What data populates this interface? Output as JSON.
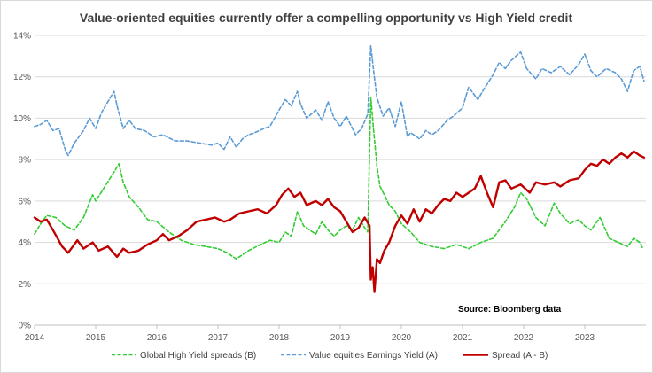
{
  "chart_data": {
    "type": "line",
    "title": "Value-oriented equities currently offer a compelling opportunity vs High Yield credit",
    "xlabel": "",
    "ylabel": "",
    "xlim": [
      2014,
      2024
    ],
    "ylim": [
      0,
      14
    ],
    "x_ticks": [
      2014,
      2015,
      2016,
      2017,
      2018,
      2019,
      2020,
      2021,
      2022,
      2023
    ],
    "x_tick_labels": [
      "2014",
      "2015",
      "2016",
      "2017",
      "2018",
      "2019",
      "2020",
      "2021",
      "2022",
      "2023"
    ],
    "y_ticks": [
      0,
      2,
      4,
      6,
      8,
      10,
      12,
      14
    ],
    "y_tick_labels": [
      "0%",
      "2%",
      "4%",
      "6%",
      "8%",
      "10%",
      "12%",
      "14%"
    ],
    "grid": "horizontal",
    "legend_position": "bottom",
    "annotation": "Source: Bloomberg data",
    "series": [
      {
        "name": "Global High Yield spreads (B)",
        "color": "#33cc33",
        "style": "dashed",
        "x": [
          2014.0,
          2014.1,
          2014.2,
          2014.35,
          2014.5,
          2014.65,
          2014.8,
          2014.95,
          2015.0,
          2015.15,
          2015.3,
          2015.38,
          2015.45,
          2015.55,
          2015.7,
          2015.85,
          2016.0,
          2016.2,
          2016.4,
          2016.6,
          2016.8,
          2017.0,
          2017.15,
          2017.3,
          2017.5,
          2017.7,
          2017.85,
          2018.0,
          2018.1,
          2018.2,
          2018.3,
          2018.4,
          2018.5,
          2018.6,
          2018.7,
          2018.8,
          2018.9,
          2019.0,
          2019.1,
          2019.2,
          2019.3,
          2019.4,
          2019.45,
          2019.5,
          2019.55,
          2019.6,
          2019.65,
          2019.72,
          2019.8,
          2019.9,
          2020.0,
          2020.15,
          2020.3,
          2020.5,
          2020.7,
          2020.9,
          2021.1,
          2021.3,
          2021.5,
          2021.7,
          2021.85,
          2021.95,
          2022.05,
          2022.2,
          2022.35,
          2022.5,
          2022.6,
          2022.75,
          2022.9,
          2023.0,
          2023.1,
          2023.25,
          2023.4,
          2023.55,
          2023.7,
          2023.8,
          2023.9,
          2023.95
        ],
        "values": [
          4.4,
          4.9,
          5.3,
          5.2,
          4.8,
          4.6,
          5.2,
          6.3,
          6.0,
          6.7,
          7.4,
          7.8,
          6.9,
          6.2,
          5.7,
          5.1,
          5.0,
          4.5,
          4.1,
          3.9,
          3.8,
          3.7,
          3.5,
          3.2,
          3.6,
          3.9,
          4.1,
          4.0,
          4.5,
          4.3,
          5.5,
          4.8,
          4.6,
          4.4,
          5.0,
          4.6,
          4.3,
          4.6,
          4.8,
          4.6,
          5.2,
          4.7,
          4.5,
          11.0,
          9.3,
          7.7,
          6.7,
          6.3,
          5.8,
          5.5,
          4.9,
          4.5,
          4.0,
          3.8,
          3.7,
          3.9,
          3.7,
          4.0,
          4.2,
          5.0,
          5.7,
          6.4,
          6.1,
          5.2,
          4.8,
          5.9,
          5.4,
          4.9,
          5.1,
          4.8,
          4.6,
          5.2,
          4.2,
          4.0,
          3.8,
          4.2,
          4.0,
          3.7
        ]
      },
      {
        "name": "Value equities Earnings Yield (A)",
        "color": "#5b9bd5",
        "style": "dashed",
        "x": [
          2014.0,
          2014.1,
          2014.2,
          2014.3,
          2014.4,
          2014.5,
          2014.55,
          2014.65,
          2014.8,
          2014.9,
          2015.0,
          2015.1,
          2015.2,
          2015.3,
          2015.35,
          2015.45,
          2015.55,
          2015.65,
          2015.8,
          2015.95,
          2016.1,
          2016.3,
          2016.5,
          2016.7,
          2016.9,
          2017.0,
          2017.1,
          2017.2,
          2017.3,
          2017.4,
          2017.5,
          2017.6,
          2017.75,
          2017.85,
          2018.0,
          2018.1,
          2018.2,
          2018.3,
          2018.35,
          2018.45,
          2018.6,
          2018.7,
          2018.8,
          2018.9,
          2019.0,
          2019.1,
          2019.25,
          2019.35,
          2019.45,
          2019.5,
          2019.55,
          2019.6,
          2019.7,
          2019.8,
          2019.9,
          2020.0,
          2020.1,
          2020.15,
          2020.3,
          2020.4,
          2020.5,
          2020.6,
          2020.75,
          2020.85,
          2021.0,
          2021.1,
          2021.25,
          2021.35,
          2021.5,
          2021.6,
          2021.7,
          2021.8,
          2021.95,
          2022.05,
          2022.2,
          2022.3,
          2022.45,
          2022.6,
          2022.75,
          2022.9,
          2023.0,
          2023.1,
          2023.2,
          2023.35,
          2023.5,
          2023.6,
          2023.7,
          2023.8,
          2023.9,
          2023.97
        ],
        "values": [
          9.6,
          9.7,
          9.9,
          9.4,
          9.5,
          8.5,
          8.2,
          8.8,
          9.4,
          10.0,
          9.5,
          10.3,
          10.8,
          11.3,
          10.6,
          9.5,
          9.9,
          9.5,
          9.4,
          9.1,
          9.2,
          8.9,
          8.9,
          8.8,
          8.7,
          8.8,
          8.5,
          9.1,
          8.6,
          9.0,
          9.2,
          9.3,
          9.5,
          9.6,
          10.4,
          10.9,
          10.6,
          11.3,
          10.7,
          10.0,
          10.4,
          9.9,
          10.8,
          10.0,
          9.6,
          10.1,
          9.2,
          9.5,
          10.2,
          13.5,
          12.2,
          11.0,
          10.1,
          10.5,
          9.6,
          10.8,
          9.1,
          9.3,
          9.0,
          9.4,
          9.2,
          9.4,
          9.9,
          10.1,
          10.5,
          11.5,
          10.9,
          11.4,
          12.1,
          12.7,
          12.4,
          12.8,
          13.2,
          12.4,
          11.9,
          12.4,
          12.2,
          12.5,
          12.1,
          12.6,
          13.1,
          12.3,
          12.0,
          12.4,
          12.2,
          11.9,
          11.3,
          12.3,
          12.5,
          11.8
        ]
      },
      {
        "name": "Spread (A - B)",
        "color": "#c00000",
        "style": "solid",
        "x": [
          2014.0,
          2014.1,
          2014.2,
          2014.3,
          2014.45,
          2014.55,
          2014.7,
          2014.8,
          2014.95,
          2015.05,
          2015.2,
          2015.35,
          2015.45,
          2015.55,
          2015.7,
          2015.85,
          2016.0,
          2016.1,
          2016.2,
          2016.35,
          2016.5,
          2016.65,
          2016.8,
          2016.95,
          2017.1,
          2017.2,
          2017.35,
          2017.5,
          2017.65,
          2017.8,
          2017.95,
          2018.05,
          2018.15,
          2018.25,
          2018.35,
          2018.45,
          2018.6,
          2018.7,
          2018.8,
          2018.9,
          2019.0,
          2019.1,
          2019.2,
          2019.3,
          2019.4,
          2019.48,
          2019.5,
          2019.53,
          2019.56,
          2019.6,
          2019.65,
          2019.72,
          2019.8,
          2019.9,
          2020.0,
          2020.1,
          2020.2,
          2020.3,
          2020.4,
          2020.5,
          2020.6,
          2020.7,
          2020.8,
          2020.9,
          2021.0,
          2021.1,
          2021.2,
          2021.3,
          2021.4,
          2021.5,
          2021.6,
          2021.7,
          2021.8,
          2021.95,
          2022.1,
          2022.2,
          2022.35,
          2022.5,
          2022.6,
          2022.75,
          2022.9,
          2023.0,
          2023.1,
          2023.2,
          2023.3,
          2023.4,
          2023.5,
          2023.6,
          2023.7,
          2023.8,
          2023.9,
          2023.97
        ],
        "values": [
          5.2,
          5.0,
          5.1,
          4.6,
          3.8,
          3.5,
          4.1,
          3.7,
          4.0,
          3.6,
          3.8,
          3.3,
          3.7,
          3.5,
          3.6,
          3.9,
          4.1,
          4.4,
          4.1,
          4.3,
          4.6,
          5.0,
          5.1,
          5.2,
          5.0,
          5.1,
          5.4,
          5.5,
          5.6,
          5.4,
          5.8,
          6.3,
          6.6,
          6.2,
          6.4,
          5.8,
          6.0,
          5.8,
          6.1,
          5.7,
          5.5,
          5.0,
          4.5,
          4.7,
          5.2,
          4.8,
          2.2,
          2.8,
          1.6,
          3.2,
          3.0,
          3.6,
          4.0,
          4.8,
          5.3,
          4.9,
          5.6,
          5.0,
          5.6,
          5.4,
          5.8,
          6.1,
          6.0,
          6.4,
          6.2,
          6.4,
          6.6,
          7.2,
          6.4,
          5.7,
          6.9,
          7.0,
          6.6,
          6.8,
          6.4,
          6.9,
          6.8,
          6.9,
          6.7,
          7.0,
          7.1,
          7.5,
          7.8,
          7.7,
          8.0,
          7.8,
          8.1,
          8.3,
          8.1,
          8.4,
          8.2,
          8.1
        ]
      }
    ]
  }
}
